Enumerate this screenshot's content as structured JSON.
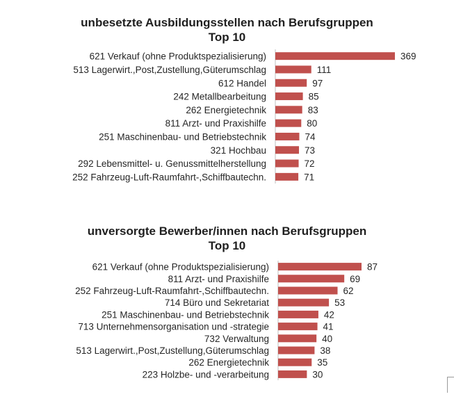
{
  "colors": {
    "bar": "#c0504d",
    "text": "#262626",
    "axis": "#bfbfbf"
  },
  "chart_data": [
    {
      "type": "bar",
      "orientation": "horizontal",
      "title": "unbesetzte Ausbildungsstellen nach Berufsgruppen",
      "subtitle": "Top 10",
      "categories": [
        "621 Verkauf (ohne Produktspezialisierung)",
        "513 Lagerwirt.,Post,Zustellung,Güterumschlag",
        "612 Handel",
        "242 Metallbearbeitung",
        "262 Energietechnik",
        "811 Arzt- und Praxishilfe",
        "251 Maschinenbau- und Betriebstechnik",
        "321 Hochbau",
        "292 Lebensmittel- u. Genussmittelherstellung",
        "252 Fahrzeug-Luft-Raumfahrt-,Schiffbautechn."
      ],
      "values": [
        369,
        111,
        97,
        85,
        83,
        80,
        74,
        73,
        72,
        71
      ],
      "xlim": [
        0,
        400
      ],
      "grid": false,
      "legend": "none"
    },
    {
      "type": "bar",
      "orientation": "horizontal",
      "title": "unversorgte Bewerber/innen nach Berufsgruppen",
      "subtitle": "Top 10",
      "categories": [
        "621 Verkauf (ohne Produktspezialisierung)",
        "811 Arzt- und Praxishilfe",
        "252 Fahrzeug-Luft-Raumfahrt-,Schiffbautechn.",
        "714 Büro und Sekretariat",
        "251 Maschinenbau- und Betriebstechnik",
        "713 Unternehmensorganisation und -strategie",
        "732 Verwaltung",
        "513 Lagerwirt.,Post,Zustellung,Güterumschlag",
        "262 Energietechnik",
        "223 Holzbe- und -verarbeitung"
      ],
      "values": [
        87,
        69,
        62,
        53,
        42,
        41,
        40,
        38,
        35,
        30
      ],
      "xlim": [
        0,
        100
      ],
      "grid": false,
      "legend": "none"
    }
  ]
}
